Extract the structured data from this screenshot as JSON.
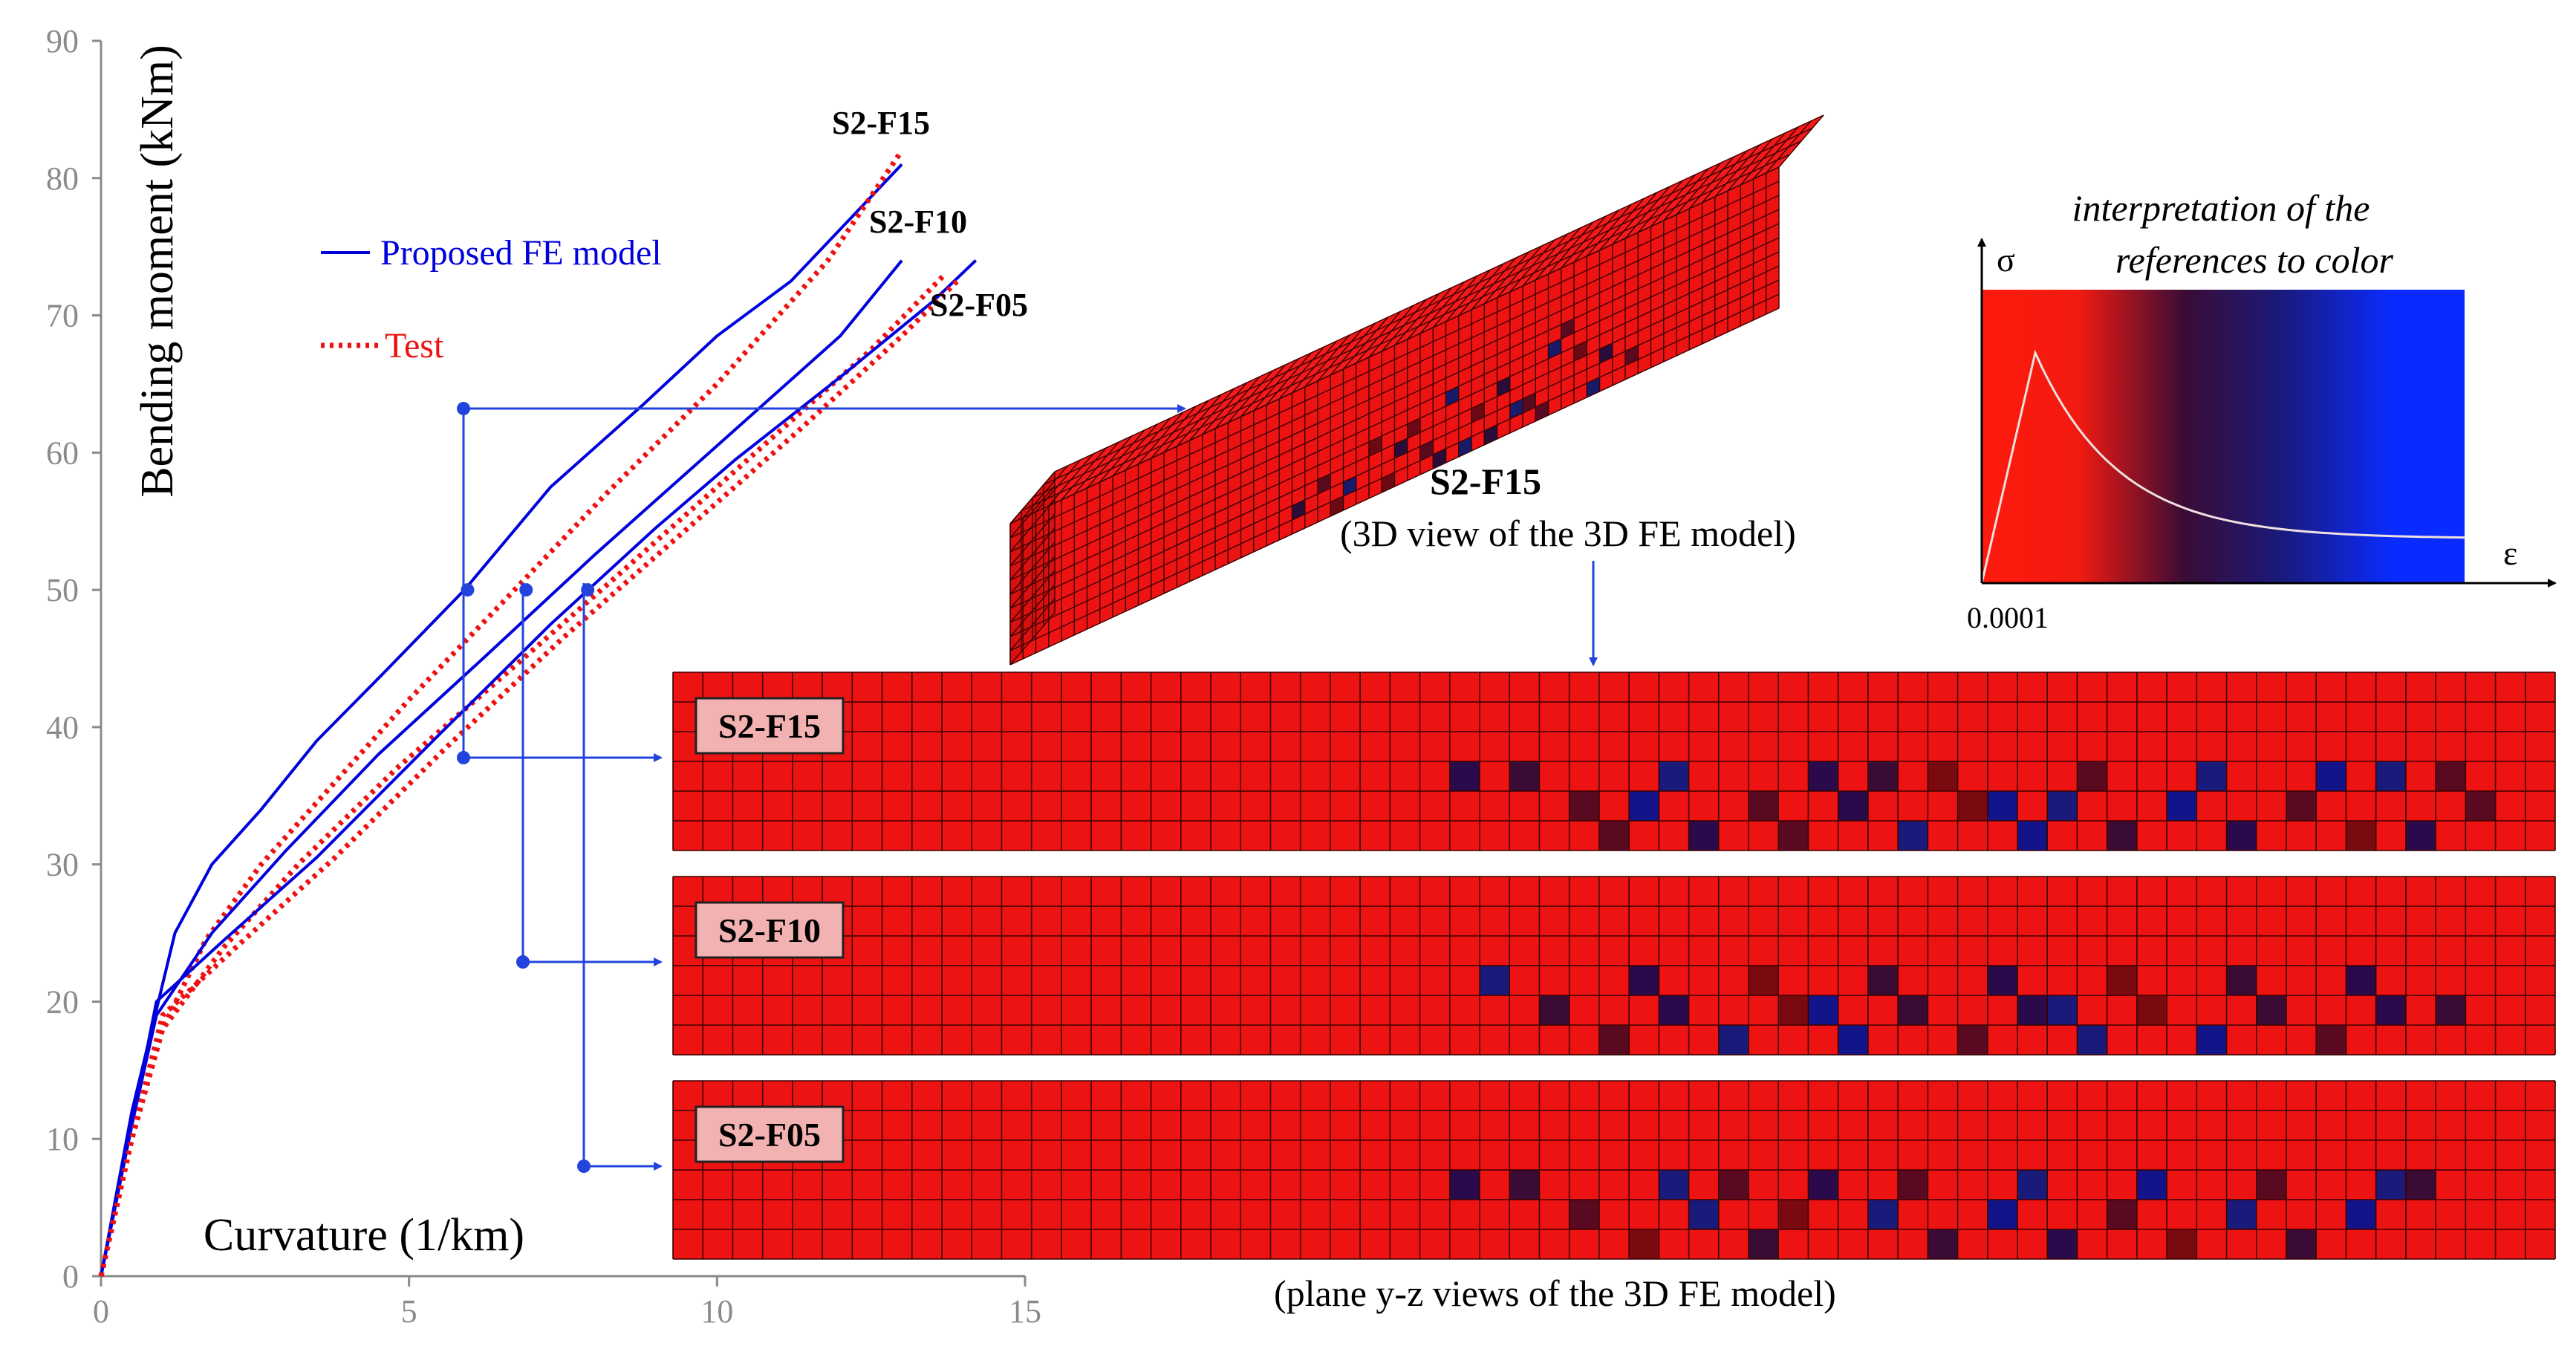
{
  "chart_data": {
    "type": "line",
    "xlabel": "Curvature (1/km)",
    "ylabel": "Bending moment (kNm)",
    "xlim": [
      0,
      15
    ],
    "ylim": [
      0,
      90
    ],
    "xticks": [
      0,
      5,
      10,
      15
    ],
    "yticks": [
      0,
      10,
      20,
      30,
      40,
      50,
      60,
      70,
      80,
      90
    ],
    "legend": [
      {
        "label": "Proposed FE model",
        "style": "solid",
        "color": "#0000dd"
      },
      {
        "label": "Test",
        "style": "dotted",
        "color": "#ee1111"
      }
    ],
    "series": [
      {
        "name": "S2-F15",
        "kind": "Proposed FE model",
        "x": [
          0,
          0.5,
          1.2,
          1.8,
          2.6,
          3.5,
          4.6,
          5.9,
          7.3,
          8.8,
          10.0,
          11.2,
          13.0
        ],
        "y": [
          0,
          12,
          25,
          30,
          34,
          39,
          44,
          50,
          57.5,
          63.5,
          68.5,
          72.5,
          81
        ]
      },
      {
        "name": "S2-F15",
        "kind": "Test",
        "x": [
          0,
          0.5,
          1.0,
          1.7,
          2.6,
          3.7,
          5.0,
          6.5,
          8.2,
          10.0,
          11.8,
          13.0
        ],
        "y": [
          0,
          10,
          18,
          24.5,
          30,
          35.5,
          42,
          49,
          57,
          65,
          74,
          82
        ]
      },
      {
        "name": "S2-F10",
        "kind": "Proposed FE model",
        "x": [
          0,
          0.5,
          0.9,
          1.8,
          3.0,
          4.5,
          6.2,
          8.0,
          10.0,
          12.0,
          13.0
        ],
        "y": [
          0,
          11,
          19,
          25,
          31,
          38,
          45,
          52.5,
          60.5,
          68.5,
          74
        ]
      },
      {
        "name": "S2-F10",
        "kind": "Test",
        "x": [
          0,
          0.5,
          1.0,
          2.0,
          3.2,
          4.8,
          6.6,
          8.5,
          10.5,
          12.5,
          13.7
        ],
        "y": [
          0,
          10,
          18,
          24,
          30,
          37,
          44,
          51.5,
          59.5,
          67.5,
          73
        ]
      },
      {
        "name": "S2-F05",
        "kind": "Proposed FE model",
        "x": [
          0,
          0.5,
          0.9,
          2.0,
          3.5,
          5.5,
          7.3,
          9.0,
          10.3,
          12.0,
          13.5,
          14.2
        ],
        "y": [
          0,
          11,
          20,
          24.5,
          30.5,
          39.5,
          47.5,
          54.5,
          59.5,
          65.5,
          71,
          74
        ]
      },
      {
        "name": "S2-F05",
        "kind": "Test",
        "x": [
          0,
          0.5,
          1.0,
          2.2,
          3.8,
          5.6,
          7.5,
          9.4,
          11.3,
          13.0,
          13.9
        ],
        "y": [
          0,
          10,
          19,
          24,
          30.5,
          38.5,
          46.5,
          54,
          61.5,
          68.5,
          72.5
        ]
      }
    ],
    "markers": [
      {
        "series": "S2-F15",
        "x": 5.95,
        "y": 50
      },
      {
        "series": "S2-F10",
        "x": 6.9,
        "y": 50
      },
      {
        "series": "S2-F05",
        "x": 7.9,
        "y": 50
      }
    ],
    "grid": false
  },
  "curve_labels": {
    "f15": "S2-F15",
    "f10": "S2-F10",
    "f05": "S2-F05"
  },
  "model_3d": {
    "label": "S2-F15",
    "caption": "(3D view of the 3D FE model)"
  },
  "color_legend": {
    "title_line1": "interpretation of the",
    "title_line2": "references to color",
    "sigma": "σ",
    "epsilon": "ε",
    "peak_strain": "0.0001",
    "colors": {
      "start": "#ff1a0d",
      "mid": "#2a0c3a",
      "end": "#0a2bff"
    }
  },
  "strips": [
    {
      "label": "S2-F15"
    },
    {
      "label": "S2-F10"
    },
    {
      "label": "S2-F05"
    }
  ],
  "strip_caption": "(plane y-z views of the 3D FE model)",
  "colors": {
    "fe": "#0000dd",
    "test": "#ee1111",
    "element": "#ee1313",
    "grid_line": "#3a0000",
    "connector": "#2244dd"
  }
}
